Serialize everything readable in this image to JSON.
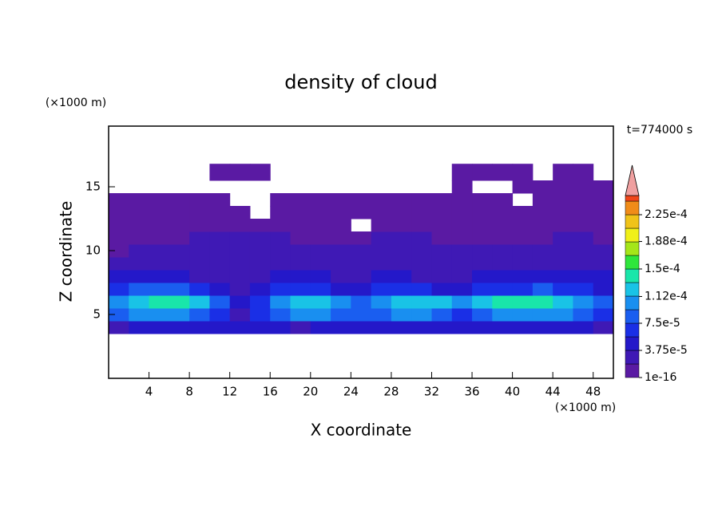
{
  "chart_data": {
    "type": "contour",
    "title": "density of cloud",
    "y_unit_label": "(×1000 m)",
    "x_unit_label": "(×1000 m)",
    "time_label": "t=774000 s",
    "xlabel": "X coordinate",
    "ylabel": "Z coordinate",
    "xlim": [
      0,
      50
    ],
    "ylim": [
      0,
      19.75
    ],
    "xticks": [
      4,
      8,
      12,
      16,
      20,
      24,
      28,
      32,
      36,
      40,
      44,
      48
    ],
    "yticks": [
      5,
      10,
      15
    ],
    "field": {
      "x_edges": [
        0,
        2,
        4,
        6,
        8,
        10,
        12,
        14,
        16,
        18,
        20,
        22,
        24,
        26,
        28,
        30,
        32,
        34,
        36,
        38,
        40,
        42,
        44,
        46,
        48,
        50
      ],
      "z_edges": [
        3.5,
        4.5,
        5.5,
        6.5,
        7.5,
        8.5,
        9.5,
        10.5,
        11.5,
        12.5,
        13.5,
        14.5,
        15.5,
        16.8
      ],
      "values": [
        [
          2e-05,
          4e-05,
          4e-05,
          4e-05,
          4e-05,
          4e-05,
          4e-05,
          4e-05,
          4e-05,
          2e-05,
          4e-05,
          4e-05,
          4e-05,
          4e-05,
          4e-05,
          4e-05,
          4e-05,
          4e-05,
          4e-05,
          4e-05,
          4e-05,
          4e-05,
          4e-05,
          4e-05,
          2e-05
        ],
        [
          8e-05,
          0.0001,
          0.0001,
          0.0001,
          8e-05,
          6e-05,
          2e-05,
          6e-05,
          8e-05,
          0.0001,
          0.0001,
          8e-05,
          8e-05,
          8e-05,
          0.0001,
          0.0001,
          8e-05,
          6e-05,
          8e-05,
          0.0001,
          0.0001,
          0.0001,
          0.0001,
          8e-05,
          6e-05
        ],
        [
          0.0001,
          0.00012,
          0.00014,
          0.00014,
          0.00012,
          8e-05,
          4e-05,
          6e-05,
          0.0001,
          0.00012,
          0.00012,
          0.0001,
          8e-05,
          0.0001,
          0.00012,
          0.00012,
          0.00012,
          0.0001,
          0.00012,
          0.00014,
          0.00014,
          0.00014,
          0.00012,
          0.0001,
          8e-05
        ],
        [
          6e-05,
          8e-05,
          8e-05,
          8e-05,
          6e-05,
          4e-05,
          2e-05,
          4e-05,
          6e-05,
          6e-05,
          6e-05,
          4e-05,
          4e-05,
          6e-05,
          6e-05,
          6e-05,
          4e-05,
          4e-05,
          6e-05,
          6e-05,
          6e-05,
          8e-05,
          6e-05,
          6e-05,
          4e-05
        ],
        [
          4e-05,
          4e-05,
          4e-05,
          4e-05,
          2e-05,
          2e-05,
          2e-05,
          2e-05,
          4e-05,
          4e-05,
          4e-05,
          2e-05,
          2e-05,
          4e-05,
          4e-05,
          2e-05,
          2e-05,
          2e-05,
          4e-05,
          4e-05,
          4e-05,
          4e-05,
          4e-05,
          4e-05,
          4e-05
        ],
        [
          2e-05,
          2e-05,
          2e-05,
          2e-05,
          2e-05,
          2e-05,
          2e-05,
          2e-05,
          2e-05,
          2e-05,
          2e-05,
          2e-05,
          2e-05,
          2e-05,
          2e-05,
          2e-05,
          2e-05,
          2e-05,
          2e-05,
          2e-05,
          2e-05,
          2e-05,
          2e-05,
          2e-05,
          2e-05
        ],
        [
          1e-06,
          2e-05,
          2e-05,
          2e-05,
          2e-05,
          2e-05,
          2e-05,
          2e-05,
          2e-05,
          2e-05,
          2e-05,
          2e-05,
          2e-05,
          2e-05,
          2e-05,
          2e-05,
          2e-05,
          2e-05,
          2e-05,
          2e-05,
          2e-05,
          2e-05,
          2e-05,
          2e-05,
          2e-05
        ],
        [
          1e-06,
          1e-06,
          1e-06,
          1e-06,
          2e-05,
          2e-05,
          2e-05,
          2e-05,
          2e-05,
          1e-06,
          1e-06,
          1e-06,
          1e-06,
          2e-05,
          2e-05,
          2e-05,
          1e-06,
          1e-06,
          1e-06,
          1e-06,
          1e-06,
          1e-06,
          2e-05,
          2e-05,
          1e-06
        ],
        [
          1e-06,
          1e-06,
          1e-06,
          1e-06,
          1e-06,
          1e-06,
          1e-06,
          1e-06,
          1e-06,
          1e-06,
          1e-06,
          1e-06,
          null,
          1e-06,
          1e-06,
          1e-06,
          1e-06,
          1e-06,
          1e-06,
          1e-06,
          1e-06,
          1e-06,
          1e-06,
          1e-06,
          1e-06
        ],
        [
          1e-06,
          1e-06,
          1e-06,
          1e-06,
          1e-06,
          1e-06,
          1e-06,
          null,
          1e-06,
          1e-06,
          1e-06,
          1e-06,
          1e-06,
          1e-06,
          1e-06,
          1e-06,
          1e-06,
          1e-06,
          1e-06,
          1e-06,
          1e-06,
          1e-06,
          1e-06,
          1e-06,
          1e-06
        ],
        [
          1e-06,
          1e-06,
          1e-06,
          1e-06,
          1e-06,
          1e-06,
          null,
          null,
          1e-06,
          1e-06,
          1e-06,
          1e-06,
          1e-06,
          1e-06,
          1e-06,
          1e-06,
          1e-06,
          1e-06,
          1e-06,
          1e-06,
          null,
          1e-06,
          1e-06,
          1e-06,
          1e-06
        ],
        [
          null,
          null,
          null,
          null,
          null,
          null,
          null,
          null,
          null,
          null,
          null,
          null,
          null,
          null,
          null,
          null,
          null,
          1e-06,
          null,
          null,
          1e-06,
          1e-06,
          1e-06,
          1e-06,
          1e-06
        ],
        [
          null,
          null,
          null,
          null,
          null,
          1e-06,
          1e-06,
          1e-06,
          null,
          null,
          null,
          null,
          null,
          null,
          null,
          null,
          null,
          1e-06,
          1e-06,
          1e-06,
          1e-06,
          null,
          1e-06,
          1e-06,
          null
        ]
      ]
    },
    "colorbar": {
      "levels": [
        1e-16,
        1.875e-05,
        3.75e-05,
        5.625e-05,
        7.5e-05,
        9.375e-05,
        0.0001125,
        0.00013125,
        0.00015,
        0.00016875,
        0.0001875,
        0.00020625,
        0.000225,
        0.00024375
      ],
      "colors": [
        "#5a1aa3",
        "#3f19b5",
        "#2418c9",
        "#1a2fe6",
        "#1a5ef0",
        "#198ff0",
        "#19c3e6",
        "#19e6aa",
        "#2ee63c",
        "#a5e619",
        "#f0f019",
        "#f0c319",
        "#f08c19",
        "#f04619",
        "#f0a0a0"
      ],
      "ticks": [
        {
          "value": 1e-16,
          "label": "1e-16"
        },
        {
          "value": 3.75e-05,
          "label": "3.75e-5"
        },
        {
          "value": 7.5e-05,
          "label": "7.5e-5"
        },
        {
          "value": 0.000112,
          "label": "1.12e-4"
        },
        {
          "value": 0.00015,
          "label": "1.5e-4"
        },
        {
          "value": 0.000188,
          "label": "1.88e-4"
        },
        {
          "value": 0.000225,
          "label": "2.25e-4"
        }
      ]
    }
  }
}
